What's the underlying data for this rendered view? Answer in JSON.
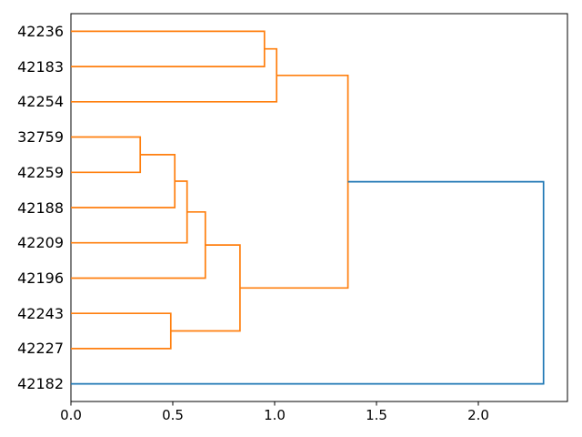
{
  "chart_data": {
    "type": "dendrogram",
    "orientation": "right",
    "title": "",
    "xlabel": "",
    "ylabel": "",
    "grid": false,
    "leaves": [
      "42236",
      "42183",
      "42254",
      "32759",
      "42259",
      "42188",
      "42209",
      "42196",
      "42243",
      "42227",
      "42182"
    ],
    "links": [
      {
        "rows": [
          0,
          0,
          1,
          1
        ],
        "heights": [
          0,
          0.95,
          0.95,
          0
        ],
        "color": "#ff7f0e"
      },
      {
        "rows": [
          0.5,
          0.5,
          2,
          2
        ],
        "heights": [
          0.95,
          1.01,
          1.01,
          0
        ],
        "color": "#ff7f0e"
      },
      {
        "rows": [
          3,
          3,
          4,
          4
        ],
        "heights": [
          0,
          0.34,
          0.34,
          0
        ],
        "color": "#ff7f0e"
      },
      {
        "rows": [
          3.5,
          3.5,
          5,
          5
        ],
        "heights": [
          0.34,
          0.51,
          0.51,
          0
        ],
        "color": "#ff7f0e"
      },
      {
        "rows": [
          4.25,
          4.25,
          6,
          6
        ],
        "heights": [
          0.51,
          0.57,
          0.57,
          0
        ],
        "color": "#ff7f0e"
      },
      {
        "rows": [
          5.125,
          5.125,
          7,
          7
        ],
        "heights": [
          0.57,
          0.66,
          0.66,
          0
        ],
        "color": "#ff7f0e"
      },
      {
        "rows": [
          8,
          8,
          9,
          9
        ],
        "heights": [
          0,
          0.49,
          0.49,
          0
        ],
        "color": "#ff7f0e"
      },
      {
        "rows": [
          6.0625,
          6.0625,
          8.5,
          8.5
        ],
        "heights": [
          0.66,
          0.83,
          0.83,
          0.49
        ],
        "color": "#ff7f0e"
      },
      {
        "rows": [
          1.25,
          1.25,
          7.28125,
          7.28125
        ],
        "heights": [
          1.01,
          1.36,
          1.36,
          0.83
        ],
        "color": "#ff7f0e"
      },
      {
        "rows": [
          4.265625,
          4.265625,
          10,
          10
        ],
        "heights": [
          1.36,
          2.32,
          2.32,
          0
        ],
        "color": "#1f77b4"
      }
    ],
    "x_ticks": [
      {
        "value": 0.0,
        "label": "0.0"
      },
      {
        "value": 0.5,
        "label": "0.5"
      },
      {
        "value": 1.0,
        "label": "1.0"
      },
      {
        "value": 1.5,
        "label": "1.5"
      },
      {
        "value": 2.0,
        "label": "2.0"
      }
    ],
    "xlim": [
      0,
      2.4375
    ],
    "colors": {
      "cluster_link": "#ff7f0e",
      "root_link": "#1f77b4",
      "frame": "#000000",
      "text": "#000000",
      "background": "#ffffff"
    }
  }
}
